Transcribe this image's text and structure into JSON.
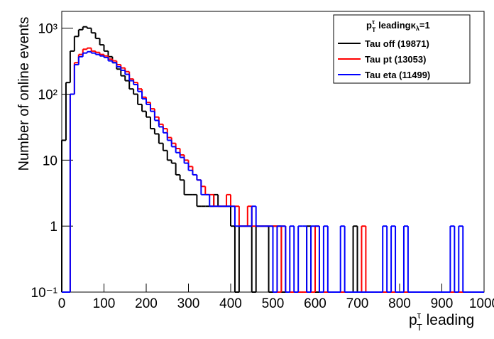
{
  "chart_data": {
    "type": "histogram",
    "y_label": "Number of online events",
    "x_label": {
      "base": "p",
      "sub": "T",
      "sup": "τ",
      "text": " leading"
    },
    "legend_title": {
      "base": "p",
      "sub": "T",
      "sup": "τ",
      "text": " leading",
      "kappa": "κ",
      "kappa_sub": "λ",
      "tail": "=1"
    },
    "legend": "top-right",
    "log_y": true,
    "xlim": [
      0,
      1000
    ],
    "ylim": [
      0.1,
      1800
    ],
    "xticks": [
      0,
      100,
      200,
      300,
      400,
      500,
      600,
      700,
      800,
      900,
      1000
    ],
    "yticks": [
      {
        "value": 0.1,
        "label": "10⁻¹"
      },
      1,
      10,
      {
        "value": 100,
        "label": "10²"
      },
      {
        "value": 1000,
        "label": "10³"
      }
    ],
    "bins": [
      0,
      10,
      20,
      30,
      40,
      50,
      60,
      70,
      80,
      90,
      100,
      110,
      120,
      130,
      140,
      150,
      160,
      170,
      180,
      190,
      200,
      210,
      220,
      230,
      240,
      250,
      260,
      270,
      280,
      290,
      300,
      310,
      320,
      330,
      340,
      350,
      360,
      370,
      380,
      390,
      400,
      410,
      420,
      430,
      440,
      450,
      460,
      470,
      480,
      490,
      500,
      510,
      520,
      530,
      540,
      550,
      560,
      570,
      580,
      590,
      600,
      610,
      620,
      630,
      640,
      650,
      660,
      670,
      680,
      690,
      700,
      710,
      720,
      730,
      740,
      750,
      760,
      770,
      780,
      790,
      800,
      810,
      820,
      830,
      840,
      850,
      860,
      870,
      880,
      890,
      900,
      910,
      920,
      930,
      940,
      950,
      960,
      970,
      980,
      990,
      1000
    ],
    "series": [
      {
        "name": "Tau off (19871)",
        "color": "#000000",
        "values": [
          20,
          150,
          450,
          750,
          950,
          1050,
          1000,
          850,
          700,
          560,
          450,
          370,
          300,
          240,
          190,
          160,
          120,
          100,
          70,
          55,
          45,
          30,
          25,
          18,
          14,
          10,
          9,
          6,
          5,
          3,
          3,
          3,
          2,
          2,
          2,
          2,
          3,
          2,
          2,
          2,
          1,
          0,
          1,
          1,
          1,
          0,
          1,
          1,
          1,
          0,
          1,
          1,
          0,
          0,
          0,
          0,
          0,
          0,
          1,
          0,
          0,
          0,
          0,
          0,
          0,
          0,
          0,
          0,
          0,
          1,
          0,
          0,
          0,
          0,
          0,
          0,
          0,
          0,
          0,
          0,
          0,
          0,
          0,
          0,
          0,
          0,
          0,
          0,
          0,
          0,
          0,
          0,
          0,
          0,
          0,
          0,
          0,
          0,
          0,
          0
        ]
      },
      {
        "name": "Tau pt (13053)",
        "color": "#ff0000",
        "values": [
          0,
          0,
          100,
          300,
          400,
          480,
          500,
          450,
          430,
          400,
          380,
          340,
          320,
          280,
          250,
          220,
          170,
          150,
          120,
          90,
          75,
          60,
          45,
          35,
          30,
          22,
          18,
          15,
          12,
          10,
          8,
          6,
          5,
          4,
          3,
          3,
          2,
          2,
          2,
          3,
          2,
          2,
          1,
          1,
          2,
          1,
          1,
          1,
          1,
          1,
          1,
          0,
          1,
          0,
          0,
          0,
          0,
          0,
          0,
          0,
          1,
          0,
          0,
          0,
          0,
          0,
          0,
          0,
          0,
          0,
          0,
          1,
          0,
          0,
          0,
          0,
          0,
          0,
          0,
          0,
          0,
          0,
          0,
          0,
          0,
          0,
          0,
          0,
          0,
          0,
          0,
          0,
          0,
          0,
          0,
          0,
          0,
          0,
          0,
          0
        ]
      },
      {
        "name": "Tau eta (11499)",
        "color": "#0000ff",
        "values": [
          0,
          0,
          100,
          280,
          370,
          420,
          440,
          420,
          400,
          380,
          360,
          320,
          300,
          260,
          230,
          200,
          160,
          140,
          110,
          85,
          70,
          55,
          40,
          32,
          26,
          20,
          16,
          13,
          11,
          9,
          7,
          6,
          5,
          3,
          3,
          2,
          2,
          2,
          2,
          2,
          2,
          1,
          1,
          1,
          1,
          2,
          1,
          1,
          1,
          1,
          0,
          1,
          1,
          0,
          1,
          0,
          1,
          1,
          0,
          1,
          1,
          0,
          1,
          0,
          0,
          0,
          1,
          0,
          0,
          0,
          0,
          0,
          0,
          0,
          0,
          0,
          1,
          0,
          1,
          0,
          0,
          1,
          0,
          0,
          0,
          0,
          0,
          0,
          0,
          0,
          0,
          0,
          1,
          0,
          1,
          0,
          0,
          0,
          0,
          0
        ]
      }
    ]
  }
}
